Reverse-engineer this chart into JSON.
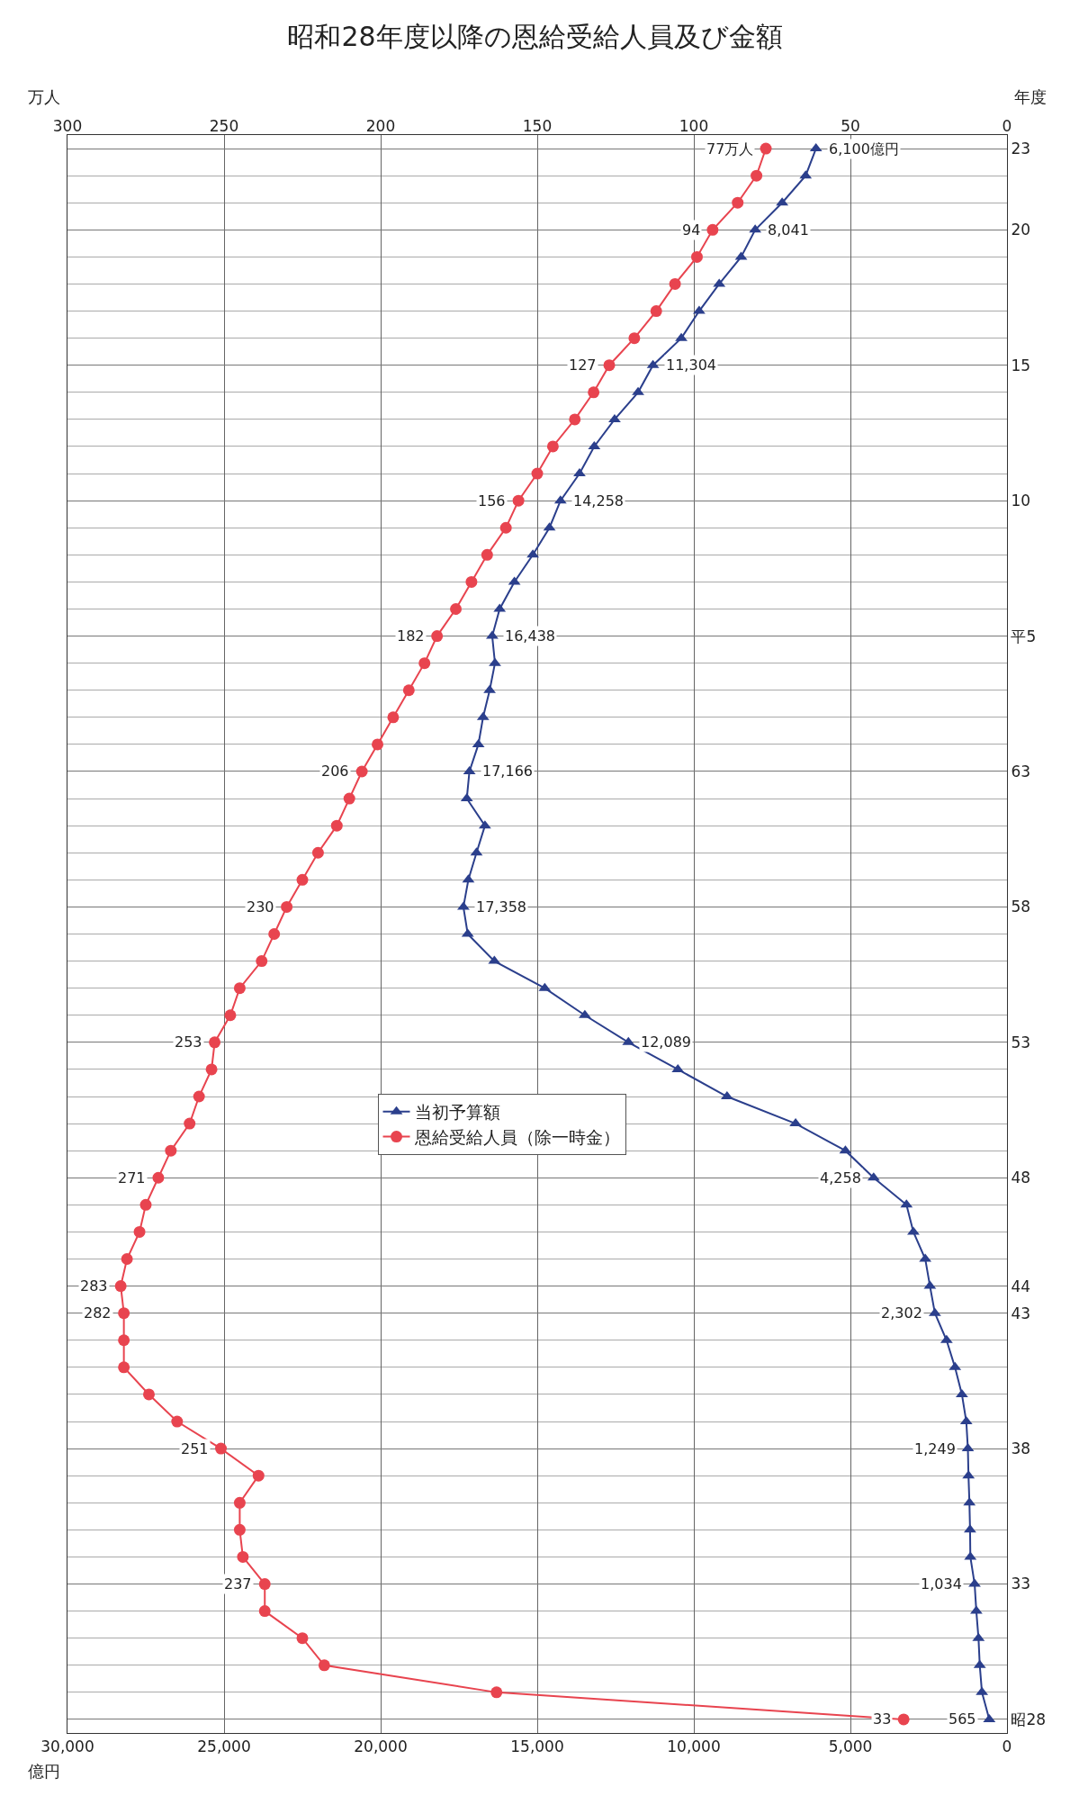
{
  "chart_data": {
    "type": "line",
    "orientation": "horizontal",
    "title": "昭和28年度以降の恩給受給人員及び金額",
    "xlabel": "億円",
    "x2label": "万人",
    "ylabel": "年度",
    "categories": [
      "23",
      null,
      null,
      "20",
      null,
      null,
      null,
      null,
      "15",
      null,
      null,
      null,
      null,
      "10",
      null,
      null,
      null,
      null,
      "平5",
      null,
      null,
      null,
      null,
      "63",
      null,
      null,
      null,
      null,
      "58",
      null,
      null,
      null,
      null,
      "53",
      null,
      null,
      null,
      null,
      "48",
      null,
      null,
      null,
      "44",
      "43",
      null,
      null,
      null,
      null,
      "38",
      null,
      null,
      null,
      null,
      "33",
      null,
      null,
      null,
      null,
      "昭28"
    ],
    "series": [
      {
        "name": "当初予算額",
        "color": "#2b3f8c",
        "marker": "triangle",
        "values": [
          6100,
          6430,
          7180,
          8041,
          8490,
          9190,
          9830,
          10400,
          11304,
          11780,
          12530,
          13180,
          13650,
          14258,
          14610,
          15140,
          15730,
          16200,
          16438,
          16350,
          16520,
          16730,
          16880,
          17166,
          17250,
          16670,
          16940,
          17200,
          17358,
          17220,
          16370,
          14760,
          13480,
          12089,
          10510,
          8940,
          6750,
          5160,
          4258,
          3210,
          2990,
          2610,
          2460,
          2302,
          1930,
          1660,
          1440,
          1300,
          1249,
          1230,
          1200,
          1180,
          1170,
          1034,
          980,
          910,
          870,
          800,
          565
        ],
        "value_labels": [
          "6,100億円",
          null,
          null,
          "8,041",
          null,
          null,
          null,
          null,
          "11,304",
          null,
          null,
          null,
          null,
          "14,258",
          null,
          null,
          null,
          null,
          "16,438",
          null,
          null,
          null,
          null,
          "17,166",
          null,
          null,
          null,
          null,
          "17,358",
          null,
          null,
          null,
          null,
          "12,089",
          null,
          null,
          null,
          null,
          "4,258",
          null,
          null,
          null,
          null,
          "2,302",
          null,
          null,
          null,
          null,
          "1,249",
          null,
          null,
          null,
          null,
          "1,034",
          null,
          null,
          null,
          null,
          "565"
        ]
      },
      {
        "name": "恩給受給人員（除一時金）",
        "color": "#e8444f",
        "marker": "circle",
        "axis": "x2",
        "values": [
          77,
          80,
          86,
          94,
          99,
          106,
          112,
          119,
          127,
          132,
          138,
          145,
          150,
          156,
          160,
          166,
          171,
          176,
          182,
          186,
          191,
          196,
          201,
          206,
          210,
          214,
          220,
          225,
          230,
          234,
          238,
          245,
          248,
          253,
          254,
          258,
          261,
          267,
          271,
          275,
          277,
          281,
          283,
          282,
          282,
          282,
          274,
          265,
          251,
          239,
          245,
          245,
          244,
          237,
          237,
          225,
          218,
          163,
          33
        ],
        "value_labels": [
          "77万人",
          null,
          null,
          "94",
          null,
          null,
          null,
          null,
          "127",
          null,
          null,
          null,
          null,
          "156",
          null,
          null,
          null,
          null,
          "182",
          null,
          null,
          null,
          null,
          "206",
          null,
          null,
          null,
          null,
          "230",
          null,
          null,
          null,
          null,
          "253",
          null,
          null,
          null,
          null,
          "271",
          null,
          null,
          null,
          "283",
          "282",
          null,
          null,
          null,
          null,
          "251",
          null,
          null,
          null,
          null,
          "237",
          null,
          null,
          null,
          null,
          "33"
        ]
      }
    ],
    "xlim": [
      30000,
      0
    ],
    "xticks": [
      {
        "value": 30000,
        "label": "30,000"
      },
      {
        "value": 25000,
        "label": "25,000"
      },
      {
        "value": 20000,
        "label": "20,000"
      },
      {
        "value": 15000,
        "label": "15,000"
      },
      {
        "value": 10000,
        "label": "10,000"
      },
      {
        "value": 5000,
        "label": "5,000"
      },
      0
    ],
    "x2lim": [
      300,
      0
    ],
    "x2ticks": [
      300,
      250,
      200,
      150,
      100,
      50,
      0
    ],
    "grid": true,
    "legend": "center"
  }
}
